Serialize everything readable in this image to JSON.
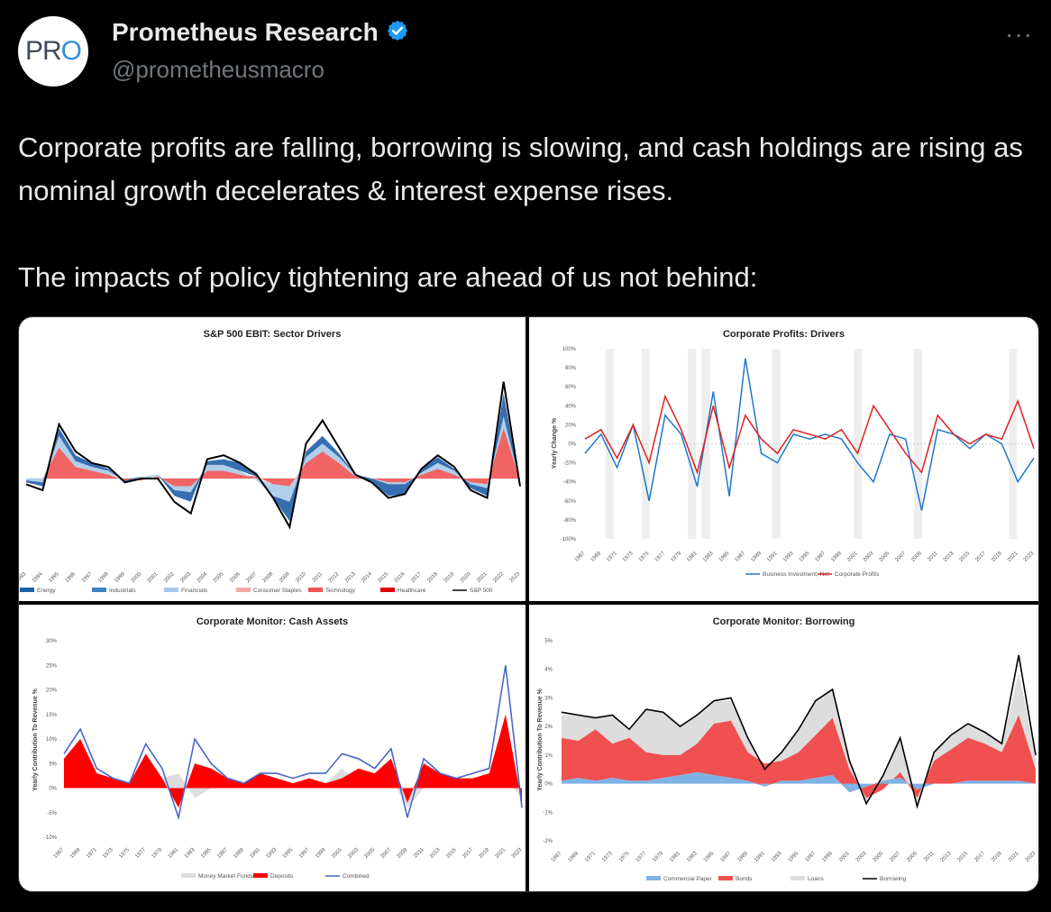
{
  "tweet": {
    "display_name": "Prometheus Research",
    "handle": "@prometheusmacro",
    "avatar_text_a": "PR",
    "avatar_text_b": "O",
    "more_label": "···",
    "text_p1": "Corporate profits are falling, borrowing is slowing, and cash holdings are rising as nominal growth decelerates & interest expense rises.",
    "text_p2": "The impacts of policy tightening are ahead of us not behind:"
  },
  "colors": {
    "verified": "#1d9bf0",
    "background": "#000000",
    "text": "#e7e9ea",
    "muted": "#71767b"
  },
  "icons": {
    "verified": "verified-badge-icon",
    "more": "more-icon"
  },
  "chart_data": [
    {
      "type": "area",
      "title": "S&P 500 EBIT: Sector Drivers",
      "ylabel": "",
      "x_ticks": [
        "1993",
        "1994",
        "1995",
        "1996",
        "1997",
        "1998",
        "1999",
        "2000",
        "2001",
        "2002",
        "2003",
        "2004",
        "2005",
        "2006",
        "2007",
        "2008",
        "2009",
        "2010",
        "2011",
        "2012",
        "2013",
        "2014",
        "2015",
        "2016",
        "2017",
        "2018",
        "2019",
        "2020",
        "2021",
        "2022",
        "2023"
      ],
      "legend": [
        {
          "name": "Energy",
          "color": "#1f5fa8"
        },
        {
          "name": "Industrials",
          "color": "#3b83c4"
        },
        {
          "name": "Financials",
          "color": "#a9c9e8"
        },
        {
          "name": "Consumer Staples",
          "color": "#f4a9a9"
        },
        {
          "name": "Technology",
          "color": "#ef5353"
        },
        {
          "name": "Healthcare",
          "color": "#e00000"
        },
        {
          "name": "S&P 500",
          "color": "#000000"
        }
      ],
      "x": [
        1993,
        1994,
        1995,
        1996,
        1997,
        1998,
        1999,
        2000,
        2001,
        2002,
        2003,
        2004,
        2005,
        2006,
        2007,
        2008,
        2009,
        2010,
        2011,
        2012,
        2013,
        2014,
        2015,
        2016,
        2017,
        2018,
        2019,
        2020,
        2021,
        2022,
        2023
      ],
      "sp500": [
        -3,
        -6,
        28,
        14,
        8,
        6,
        -2,
        0,
        0,
        -12,
        -18,
        10,
        12,
        8,
        2,
        -10,
        -25,
        18,
        30,
        16,
        2,
        -2,
        -10,
        -8,
        5,
        12,
        6,
        -6,
        -10,
        50,
        -4
      ],
      "sector_series": [
        {
          "name": "Technology",
          "values": [
            0,
            0,
            16,
            6,
            4,
            2,
            -1,
            -1,
            1,
            -4,
            -4,
            4,
            4,
            2,
            1,
            -3,
            -4,
            8,
            14,
            8,
            1,
            0,
            -2,
            -2,
            2,
            5,
            2,
            -2,
            -3,
            26,
            -1
          ]
        },
        {
          "name": "Financials",
          "values": [
            -1,
            -2,
            6,
            3,
            2,
            2,
            0,
            1,
            1,
            -2,
            -3,
            3,
            3,
            2,
            -1,
            -6,
            -8,
            3,
            4,
            3,
            1,
            0,
            -1,
            -1,
            1,
            3,
            2,
            -1,
            -2,
            6,
            -1
          ]
        },
        {
          "name": "Energy",
          "values": [
            -1,
            -2,
            4,
            3,
            2,
            1,
            -1,
            0,
            0,
            -3,
            -5,
            2,
            3,
            4,
            2,
            -1,
            -10,
            3,
            4,
            2,
            0,
            -2,
            -6,
            -5,
            2,
            3,
            1,
            -2,
            -4,
            12,
            -2
          ]
        }
      ]
    },
    {
      "type": "line",
      "title": "Corporate Profits: Drivers",
      "ylabel": "Yearly Change %",
      "ylim": [
        -100,
        100
      ],
      "y_ticks": [
        "100%",
        "80%",
        "60%",
        "40%",
        "20%",
        "0%",
        "-20%",
        "-40%",
        "-60%",
        "-80%",
        "-100%"
      ],
      "x_ticks": [
        "1967",
        "1969",
        "1971",
        "1973",
        "1975",
        "1977",
        "1979",
        "1981",
        "1983",
        "1985",
        "1987",
        "1989",
        "1991",
        "1993",
        "1995",
        "1997",
        "1999",
        "2001",
        "2003",
        "2005",
        "2007",
        "2009",
        "2011",
        "2013",
        "2015",
        "2017",
        "2019",
        "2021",
        "2023"
      ],
      "x": [
        1967,
        1969,
        1971,
        1973,
        1975,
        1977,
        1979,
        1981,
        1983,
        1985,
        1987,
        1989,
        1991,
        1993,
        1995,
        1997,
        1999,
        2001,
        2003,
        2005,
        2007,
        2009,
        2011,
        2013,
        2015,
        2017,
        2019,
        2021,
        2023
      ],
      "series": [
        {
          "name": "Business Investment, Net",
          "color": "#1f77c9",
          "values": [
            -10,
            10,
            -25,
            20,
            -60,
            30,
            10,
            -45,
            55,
            -55,
            90,
            -10,
            -20,
            10,
            5,
            10,
            5,
            -20,
            -40,
            10,
            5,
            -70,
            15,
            10,
            -5,
            10,
            0,
            -40,
            -15
          ]
        },
        {
          "name": "Corporate Profits",
          "color": "#e02020",
          "values": [
            5,
            15,
            -15,
            20,
            -20,
            50,
            15,
            -30,
            40,
            -25,
            30,
            5,
            -10,
            15,
            10,
            5,
            15,
            -10,
            40,
            15,
            -10,
            -30,
            30,
            10,
            0,
            10,
            5,
            45,
            -5
          ]
        }
      ],
      "legend": [
        {
          "name": "Business Investment, Net"
        },
        {
          "name": "Corporate Profits"
        }
      ]
    },
    {
      "type": "area",
      "title": "Corporate Monitor: Cash Assets",
      "ylabel": "Yearly Contribution To Revenue %",
      "ylim": [
        -10,
        30
      ],
      "y_ticks": [
        "30%",
        "25%",
        "20%",
        "15%",
        "10%",
        "5%",
        "0%",
        "-5%",
        "-10%"
      ],
      "x_ticks": [
        "1967",
        "1969",
        "1971",
        "1973",
        "1975",
        "1977",
        "1979",
        "1981",
        "1983",
        "1985",
        "1987",
        "1989",
        "1991",
        "1993",
        "1995",
        "1997",
        "1999",
        "2001",
        "2003",
        "2005",
        "2007",
        "2009",
        "2011",
        "2013",
        "2015",
        "2017",
        "2019",
        "2021",
        "2023"
      ],
      "x": [
        1967,
        1969,
        1971,
        1973,
        1975,
        1977,
        1979,
        1981,
        1983,
        1985,
        1987,
        1989,
        1991,
        1993,
        1995,
        1997,
        1999,
        2001,
        2003,
        2005,
        2007,
        2009,
        2011,
        2013,
        2015,
        2017,
        2019,
        2021,
        2023
      ],
      "series": [
        {
          "name": "Money Market Funds",
          "color": "#dddddd",
          "values": [
            0,
            1,
            0,
            0,
            0,
            0,
            2,
            3,
            -2,
            0,
            0,
            0,
            0,
            0,
            0,
            0,
            1,
            4,
            1,
            0,
            2,
            -4,
            0,
            0,
            0,
            0,
            0,
            2,
            -2
          ]
        },
        {
          "name": "Deposits",
          "color": "#ff0000",
          "values": [
            6,
            10,
            3,
            2,
            1,
            7,
            2,
            -4,
            5,
            4,
            2,
            1,
            3,
            2,
            1,
            2,
            1,
            2,
            4,
            3,
            6,
            -3,
            5,
            3,
            2,
            2,
            3,
            15,
            -3
          ]
        },
        {
          "name": "Combined",
          "color": "#4a66c9",
          "values": [
            7,
            12,
            4,
            2,
            1,
            9,
            4,
            -6,
            10,
            5,
            2,
            1,
            3,
            3,
            2,
            3,
            3,
            7,
            6,
            4,
            8,
            -6,
            6,
            3,
            2,
            3,
            4,
            25,
            -4
          ]
        }
      ],
      "legend": [
        {
          "name": "Money Market Funds"
        },
        {
          "name": "Deposits"
        },
        {
          "name": "Combined"
        }
      ]
    },
    {
      "type": "area",
      "title": "Corporate Monitor: Borrowing",
      "ylabel": "Yearly Contribution To Revenue %",
      "ylim": [
        -2,
        5
      ],
      "y_ticks": [
        "5%",
        "4%",
        "3%",
        "2%",
        "1%",
        "0%",
        "-1%",
        "-2%"
      ],
      "x_ticks": [
        "1967",
        "1969",
        "1971",
        "1973",
        "1975",
        "1977",
        "1979",
        "1981",
        "1983",
        "1985",
        "1987",
        "1989",
        "1991",
        "1993",
        "1995",
        "1997",
        "1999",
        "2001",
        "2003",
        "2005",
        "2007",
        "2009",
        "2011",
        "2013",
        "2015",
        "2017",
        "2019",
        "2021",
        "2023"
      ],
      "x": [
        1967,
        1969,
        1971,
        1973,
        1975,
        1977,
        1979,
        1981,
        1983,
        1985,
        1987,
        1989,
        1991,
        1993,
        1995,
        1997,
        1999,
        2001,
        2003,
        2005,
        2007,
        2009,
        2011,
        2013,
        2015,
        2017,
        2019,
        2021,
        2023
      ],
      "series": [
        {
          "name": "Commercial Paper",
          "color": "#7fb2e5",
          "values": [
            0.1,
            0.2,
            0.1,
            0.2,
            0.1,
            0.1,
            0.2,
            0.3,
            0.4,
            0.3,
            0.2,
            0.1,
            -0.1,
            0.1,
            0.1,
            0.2,
            0.3,
            -0.3,
            -0.1,
            0.1,
            0.2,
            -0.2,
            0.0,
            0.0,
            0.1,
            0.1,
            0.1,
            0.1,
            0.0
          ]
        },
        {
          "name": "Bonds",
          "color": "#f05050",
          "values": [
            1.5,
            1.3,
            1.8,
            1.2,
            1.5,
            1.0,
            0.8,
            0.7,
            1.0,
            1.8,
            2.0,
            1.0,
            0.8,
            0.7,
            1.0,
            1.5,
            2.0,
            0.8,
            -0.4,
            -0.3,
            0.2,
            -0.3,
            0.8,
            1.2,
            1.5,
            1.3,
            1.0,
            2.3,
            0.5
          ]
        },
        {
          "name": "Loans",
          "color": "#dddddd",
          "values": [
            0.8,
            0.9,
            0.4,
            1.0,
            0.3,
            1.5,
            1.5,
            1.0,
            1.0,
            0.8,
            0.7,
            0.5,
            -0.2,
            0.3,
            0.8,
            1.2,
            1.0,
            0.3,
            -0.2,
            0.5,
            1.2,
            -0.3,
            0.3,
            0.5,
            0.5,
            0.4,
            0.3,
            1.5,
            0.5
          ]
        },
        {
          "name": "Borrowing",
          "color": "#000000",
          "values": [
            2.5,
            2.4,
            2.3,
            2.4,
            1.9,
            2.6,
            2.5,
            2.0,
            2.4,
            2.9,
            3.0,
            1.6,
            0.5,
            1.1,
            1.9,
            2.9,
            3.3,
            0.8,
            -0.7,
            0.3,
            1.6,
            -0.8,
            1.1,
            1.7,
            2.1,
            1.8,
            1.4,
            4.5,
            1.0
          ]
        }
      ],
      "legend": [
        {
          "name": "Commercial Paper"
        },
        {
          "name": "Bonds"
        },
        {
          "name": "Loans"
        },
        {
          "name": "Borrowing"
        }
      ]
    }
  ]
}
